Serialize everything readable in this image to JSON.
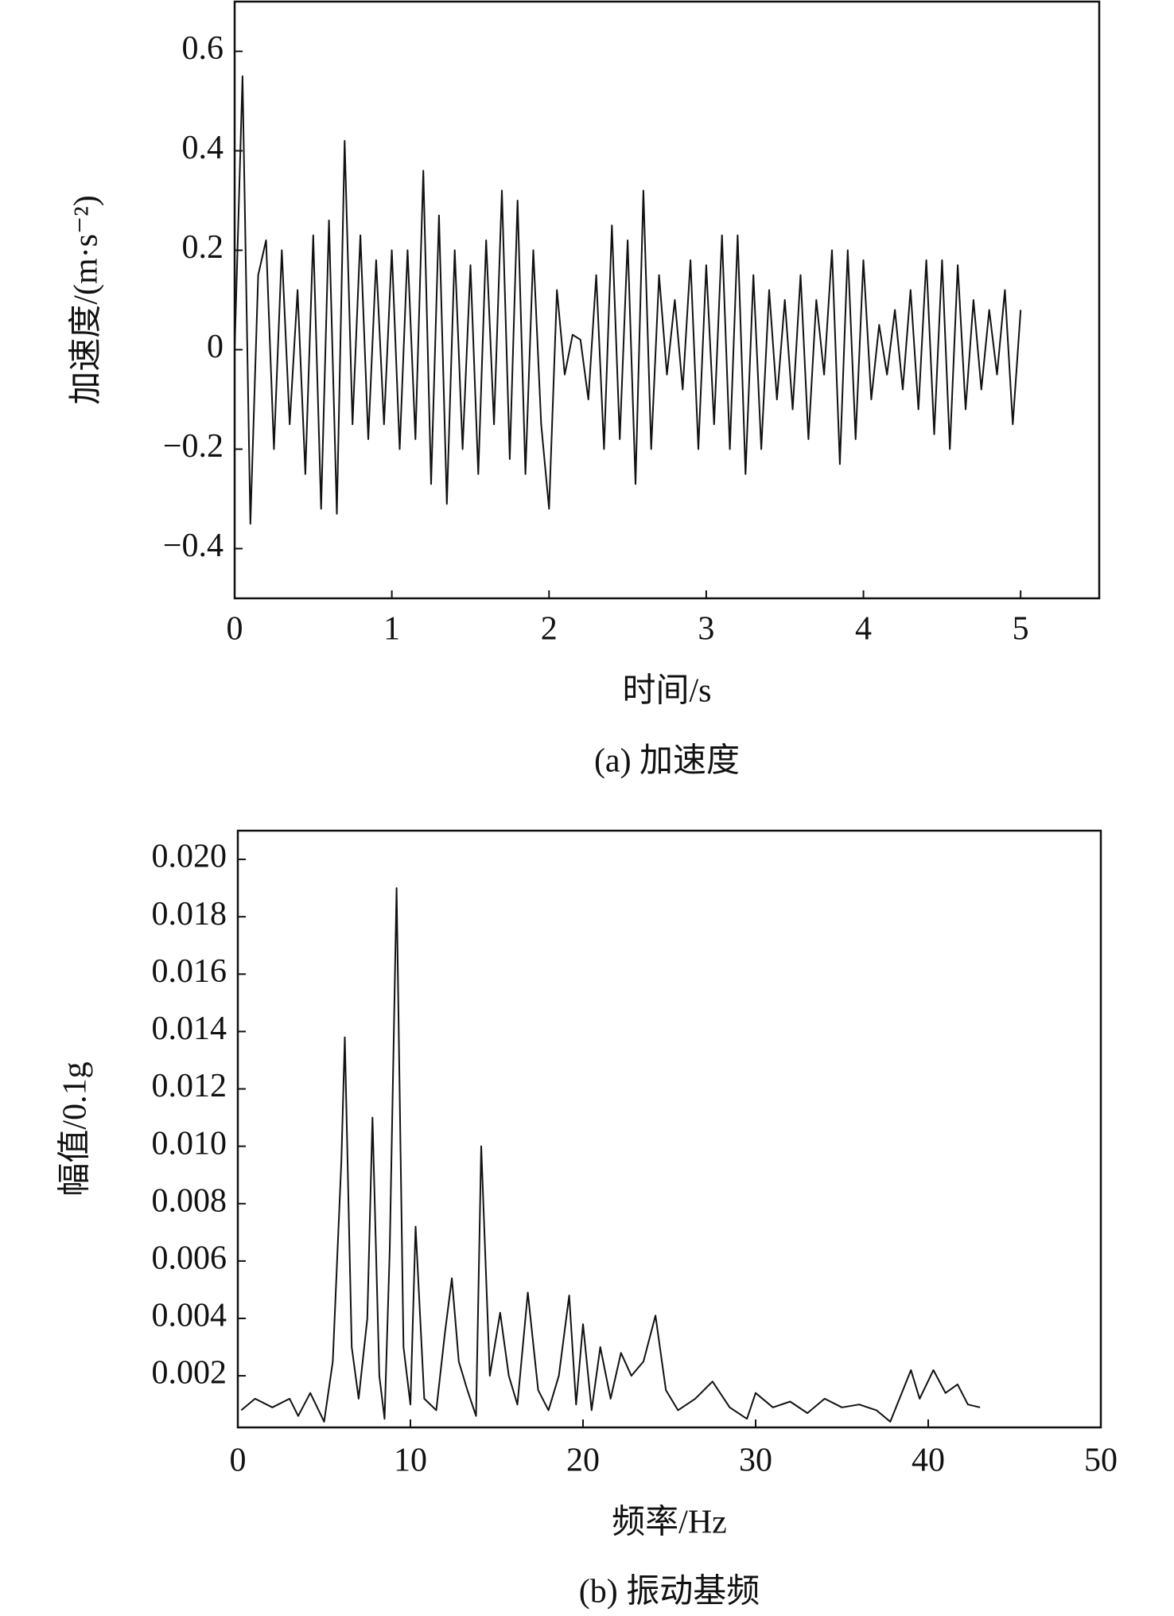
{
  "chart_data": [
    {
      "type": "line",
      "y_label": "加速度/(m·s⁻²)",
      "x_label": "时间/s",
      "caption": "(a) 加速度",
      "xlim": [
        0,
        5.5
      ],
      "xticks": [
        0,
        1,
        2,
        3,
        4,
        5
      ],
      "ylim": [
        -0.5,
        0.7
      ],
      "yticks": [
        {
          "value": -0.4,
          "label": "−0.4"
        },
        {
          "value": -0.2,
          "label": "−0.2"
        },
        0,
        0.2,
        0.4,
        0.6
      ],
      "color": "#111111",
      "x": [
        0,
        0.05,
        0.1,
        0.15,
        0.2,
        0.25,
        0.3,
        0.35,
        0.4,
        0.45,
        0.5,
        0.55,
        0.6,
        0.65,
        0.7,
        0.75,
        0.8,
        0.85,
        0.9,
        0.95,
        1,
        1.05,
        1.1,
        1.15,
        1.2,
        1.25,
        1.3,
        1.35,
        1.4,
        1.45,
        1.5,
        1.55,
        1.6,
        1.65,
        1.7,
        1.75,
        1.8,
        1.85,
        1.9,
        1.95,
        2,
        2.05,
        2.1,
        2.15,
        2.2,
        2.25,
        2.3,
        2.35,
        2.4,
        2.45,
        2.5,
        2.55,
        2.6,
        2.65,
        2.7,
        2.75,
        2.8,
        2.85,
        2.9,
        2.95,
        3,
        3.05,
        3.1,
        3.15,
        3.2,
        3.25,
        3.3,
        3.35,
        3.4,
        3.45,
        3.5,
        3.55,
        3.6,
        3.65,
        3.7,
        3.75,
        3.8,
        3.85,
        3.9,
        3.95,
        4,
        4.05,
        4.1,
        4.15,
        4.2,
        4.25,
        4.3,
        4.35,
        4.4,
        4.45,
        4.5,
        4.55,
        4.6,
        4.65,
        4.7,
        4.75,
        4.8,
        4.85,
        4.9,
        4.95,
        5
      ],
      "values": [
        0,
        0.55,
        -0.35,
        0.15,
        0.22,
        -0.2,
        0.2,
        -0.15,
        0.12,
        -0.25,
        0.23,
        -0.32,
        0.26,
        -0.33,
        0.42,
        -0.15,
        0.23,
        -0.18,
        0.18,
        -0.15,
        0.2,
        -0.2,
        0.2,
        -0.18,
        0.36,
        -0.27,
        0.27,
        -0.31,
        0.2,
        -0.2,
        0.17,
        -0.25,
        0.22,
        -0.15,
        0.32,
        -0.22,
        0.3,
        -0.25,
        0.2,
        -0.15,
        -0.32,
        0.12,
        -0.05,
        0.03,
        0.02,
        -0.1,
        0.15,
        -0.2,
        0.25,
        -0.18,
        0.22,
        -0.27,
        0.32,
        -0.2,
        0.15,
        -0.05,
        0.1,
        -0.08,
        0.18,
        -0.2,
        0.17,
        -0.15,
        0.23,
        -0.2,
        0.23,
        -0.25,
        0.15,
        -0.2,
        0.12,
        -0.1,
        0.1,
        -0.12,
        0.15,
        -0.18,
        0.1,
        -0.05,
        0.2,
        -0.23,
        0.2,
        -0.18,
        0.18,
        -0.1,
        0.05,
        -0.05,
        0.08,
        -0.08,
        0.12,
        -0.12,
        0.18,
        -0.17,
        0.18,
        -0.2,
        0.17,
        -0.12,
        0.1,
        -0.08,
        0.08,
        -0.05,
        0.12,
        -0.15,
        0.08
      ]
    },
    {
      "type": "line",
      "y_label": "幅值/0.1g",
      "x_label": "频率/Hz",
      "caption": "(b) 振动基频",
      "xlim": [
        0,
        50
      ],
      "xticks": [
        0,
        10,
        20,
        30,
        40,
        50
      ],
      "ylim": [
        0.0002,
        0.021
      ],
      "yticks": [
        0.002,
        0.004,
        0.006,
        0.008,
        {
          "value": 0.01,
          "label": "0.010"
        },
        0.012,
        0.014,
        0.016,
        0.018,
        {
          "value": 0.02,
          "label": "0.020"
        }
      ],
      "color": "#111111",
      "x": [
        0.2,
        1,
        2,
        3,
        3.5,
        4.2,
        5,
        5.5,
        6,
        6.2,
        6.6,
        7,
        7.5,
        7.8,
        8.2,
        8.5,
        8.8,
        9.2,
        9.6,
        10,
        10.3,
        10.8,
        11.5,
        12,
        12.4,
        12.8,
        13.3,
        13.8,
        14.1,
        14.6,
        15.2,
        15.7,
        16.2,
        16.8,
        17.4,
        18,
        18.6,
        19.2,
        19.6,
        20,
        20.5,
        21,
        21.6,
        22.2,
        22.8,
        23.5,
        24.2,
        24.8,
        25.5,
        26.5,
        27.5,
        28.5,
        29.5,
        30,
        31,
        32,
        33,
        34,
        35,
        36,
        37,
        37.8,
        39,
        39.5,
        40.3,
        41,
        41.7,
        42.3,
        43
      ],
      "values": [
        0.0008,
        0.0012,
        0.0009,
        0.0012,
        0.0006,
        0.0014,
        0.0004,
        0.0025,
        0.0095,
        0.0138,
        0.003,
        0.0012,
        0.004,
        0.011,
        0.002,
        0.0005,
        0.0064,
        0.019,
        0.003,
        0.001,
        0.0072,
        0.0012,
        0.0008,
        0.0035,
        0.0054,
        0.0025,
        0.0015,
        0.0006,
        0.01,
        0.002,
        0.0042,
        0.002,
        0.001,
        0.0049,
        0.0015,
        0.0008,
        0.002,
        0.0048,
        0.001,
        0.0038,
        0.0008,
        0.003,
        0.0012,
        0.0028,
        0.002,
        0.0025,
        0.0041,
        0.0015,
        0.0008,
        0.0012,
        0.0018,
        0.0009,
        0.0005,
        0.0014,
        0.0009,
        0.0011,
        0.0007,
        0.0012,
        0.0009,
        0.001,
        0.0008,
        0.0004,
        0.0022,
        0.0012,
        0.0022,
        0.0014,
        0.0017,
        0.001,
        0.0009
      ]
    }
  ]
}
